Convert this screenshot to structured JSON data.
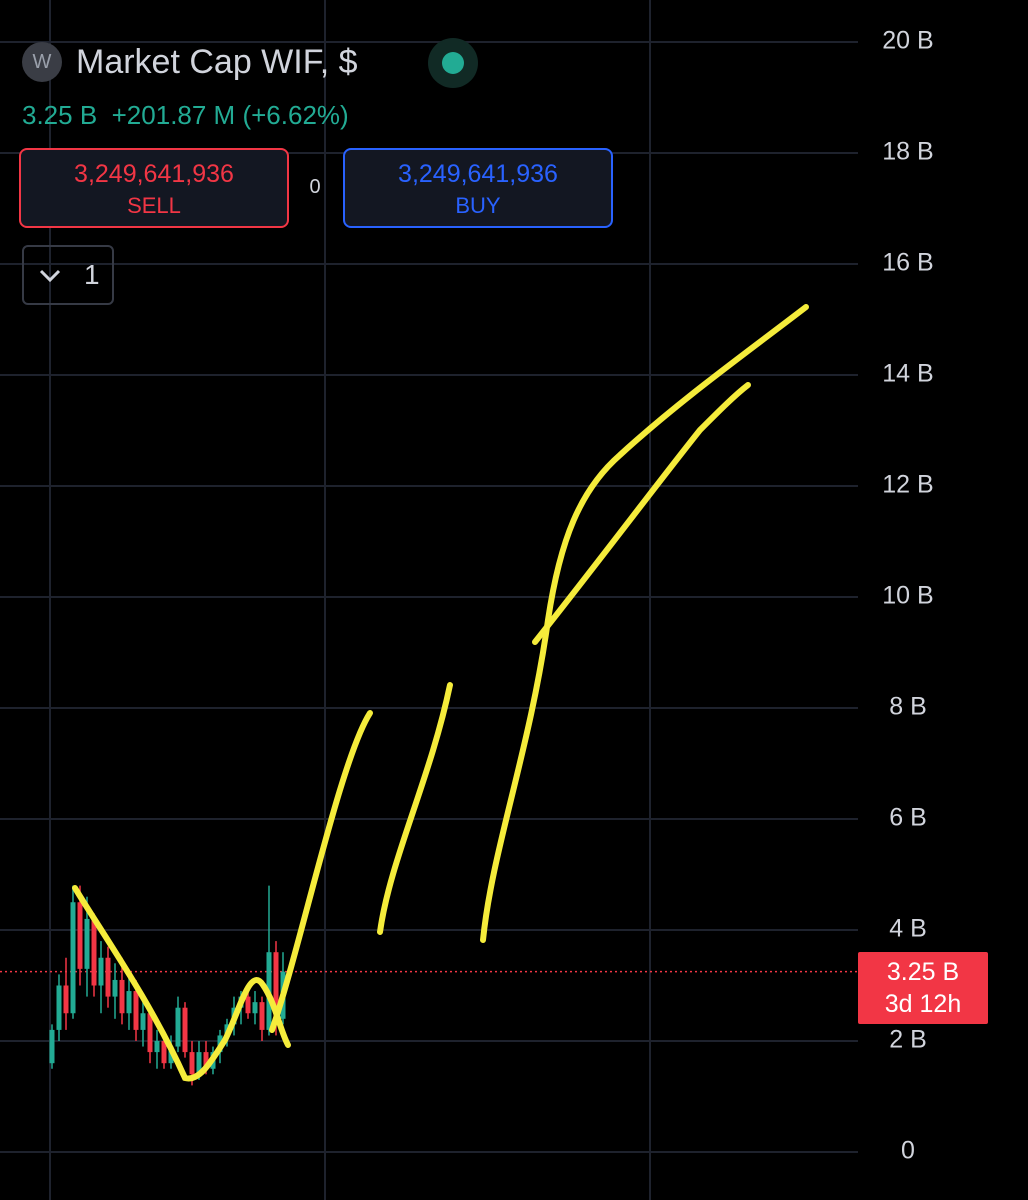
{
  "header": {
    "icon": "W",
    "title": "Market Cap WIF, $",
    "value": "3.25 B",
    "change": "+201.87 M",
    "change_pct": "(+6.62%)"
  },
  "trade": {
    "sell_price": "3,249,641,936",
    "sell_label": "SELL",
    "spread": "0",
    "buy_price": "3,249,641,936",
    "buy_label": "BUY"
  },
  "indicators_toggle": "1",
  "chart_data": {
    "type": "candlestick",
    "up_color": "#22ab94",
    "down_color": "#f23645",
    "ylim": [
      0,
      20
    ],
    "yticks": [
      {
        "value": 0,
        "label": "0"
      },
      {
        "value": 2,
        "label": "2 B"
      },
      {
        "value": 4,
        "label": "4 B"
      },
      {
        "value": 6,
        "label": "6 B"
      },
      {
        "value": 8,
        "label": "8 B"
      },
      {
        "value": 10,
        "label": "10 B"
      },
      {
        "value": 12,
        "label": "12 B"
      },
      {
        "value": 14,
        "label": "14 B"
      },
      {
        "value": 16,
        "label": "16 B"
      },
      {
        "value": 18,
        "label": "18 B"
      },
      {
        "value": 20,
        "label": "20 B"
      }
    ],
    "grid": true,
    "candles": [
      {
        "open": 1.6,
        "high": 2.3,
        "low": 1.5,
        "close": 2.2
      },
      {
        "open": 2.2,
        "high": 3.2,
        "low": 2.0,
        "close": 3.0
      },
      {
        "open": 3.0,
        "high": 3.5,
        "low": 2.2,
        "close": 2.5
      },
      {
        "open": 2.5,
        "high": 4.8,
        "low": 2.4,
        "close": 4.5
      },
      {
        "open": 4.5,
        "high": 4.8,
        "low": 3.0,
        "close": 3.3
      },
      {
        "open": 3.3,
        "high": 4.6,
        "low": 2.8,
        "close": 4.2
      },
      {
        "open": 4.2,
        "high": 4.3,
        "low": 2.8,
        "close": 3.0
      },
      {
        "open": 3.0,
        "high": 3.8,
        "low": 2.5,
        "close": 3.5
      },
      {
        "open": 3.5,
        "high": 3.7,
        "low": 2.6,
        "close": 2.8
      },
      {
        "open": 2.8,
        "high": 3.4,
        "low": 2.4,
        "close": 3.1
      },
      {
        "open": 3.1,
        "high": 3.5,
        "low": 2.3,
        "close": 2.5
      },
      {
        "open": 2.5,
        "high": 3.2,
        "low": 2.2,
        "close": 2.9
      },
      {
        "open": 2.9,
        "high": 3.1,
        "low": 2.0,
        "close": 2.2
      },
      {
        "open": 2.2,
        "high": 2.7,
        "low": 1.9,
        "close": 2.5
      },
      {
        "open": 2.5,
        "high": 2.6,
        "low": 1.6,
        "close": 1.8
      },
      {
        "open": 1.8,
        "high": 2.2,
        "low": 1.5,
        "close": 2.0
      },
      {
        "open": 2.0,
        "high": 2.1,
        "low": 1.5,
        "close": 1.6
      },
      {
        "open": 1.6,
        "high": 2.1,
        "low": 1.5,
        "close": 1.9
      },
      {
        "open": 1.9,
        "high": 2.8,
        "low": 1.8,
        "close": 2.6
      },
      {
        "open": 2.6,
        "high": 2.7,
        "low": 1.7,
        "close": 1.8
      },
      {
        "open": 1.8,
        "high": 2.0,
        "low": 1.2,
        "close": 1.4
      },
      {
        "open": 1.4,
        "high": 2.0,
        "low": 1.3,
        "close": 1.8
      },
      {
        "open": 1.8,
        "high": 2.0,
        "low": 1.4,
        "close": 1.5
      },
      {
        "open": 1.5,
        "high": 1.9,
        "low": 1.4,
        "close": 1.8
      },
      {
        "open": 1.8,
        "high": 2.2,
        "low": 1.6,
        "close": 2.1
      },
      {
        "open": 2.1,
        "high": 2.4,
        "low": 1.9,
        "close": 2.3
      },
      {
        "open": 2.3,
        "high": 2.8,
        "low": 2.1,
        "close": 2.6
      },
      {
        "open": 2.6,
        "high": 2.9,
        "low": 2.3,
        "close": 2.8
      },
      {
        "open": 2.8,
        "high": 3.0,
        "low": 2.4,
        "close": 2.5
      },
      {
        "open": 2.5,
        "high": 2.9,
        "low": 2.3,
        "close": 2.7
      },
      {
        "open": 2.7,
        "high": 2.8,
        "low": 2.0,
        "close": 2.2
      },
      {
        "open": 2.2,
        "high": 4.8,
        "low": 2.1,
        "close": 3.6
      },
      {
        "open": 3.6,
        "high": 3.8,
        "low": 2.1,
        "close": 2.4
      },
      {
        "open": 2.4,
        "high": 3.6,
        "low": 2.3,
        "close": 3.25
      }
    ],
    "last_price": 3.25,
    "last_price_label": "3.25 B",
    "countdown": "3d 12h"
  }
}
